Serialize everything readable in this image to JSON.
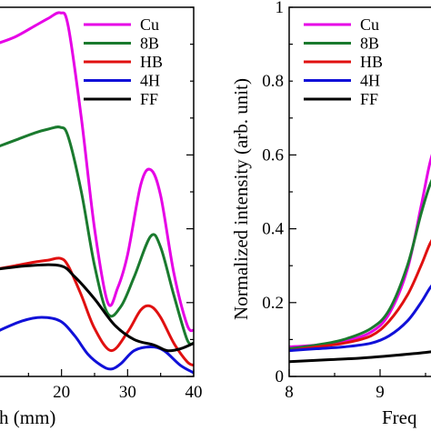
{
  "chart_data": [
    {
      "type": "line",
      "panel": "left",
      "title": "",
      "xlabel": "h (mm)",
      "ylabel": "",
      "xlim": [
        10,
        40
      ],
      "ylim": [
        0,
        1
      ],
      "x_ticks": [
        "20",
        "30",
        "40"
      ],
      "grid": false,
      "legend": "top-right",
      "series": [
        {
          "name": "Cu",
          "color": "#e600e6",
          "x": [
            10,
            13,
            16,
            18,
            19.8,
            21,
            23,
            25,
            27,
            28.5,
            30,
            32,
            33.5,
            35,
            37,
            39,
            40
          ],
          "y": [
            0.9,
            0.92,
            0.95,
            0.97,
            0.985,
            0.95,
            0.7,
            0.4,
            0.2,
            0.24,
            0.33,
            0.52,
            0.56,
            0.49,
            0.28,
            0.14,
            0.125
          ]
        },
        {
          "name": "8B",
          "color": "#1a7a2e",
          "x": [
            10,
            13,
            16,
            18,
            19.8,
            21,
            23,
            25,
            27,
            29,
            31,
            33.5,
            35,
            37,
            39,
            40
          ],
          "y": [
            0.62,
            0.64,
            0.66,
            0.67,
            0.675,
            0.65,
            0.5,
            0.3,
            0.17,
            0.19,
            0.27,
            0.38,
            0.35,
            0.22,
            0.1,
            0.09
          ]
        },
        {
          "name": "HB",
          "color": "#e01010",
          "x": [
            10,
            13,
            16,
            18,
            19.8,
            21,
            23,
            25,
            27.5,
            30,
            32,
            33.5,
            35,
            37,
            39,
            40
          ],
          "y": [
            0.29,
            0.3,
            0.31,
            0.315,
            0.32,
            0.3,
            0.22,
            0.13,
            0.07,
            0.12,
            0.18,
            0.19,
            0.16,
            0.09,
            0.04,
            0.03
          ]
        },
        {
          "name": "4H",
          "color": "#1010d8",
          "x": [
            10,
            14,
            17,
            19.8,
            22,
            24,
            26,
            27.5,
            29,
            31,
            33.5,
            35.5,
            38,
            40
          ],
          "y": [
            0.12,
            0.15,
            0.16,
            0.15,
            0.11,
            0.06,
            0.03,
            0.02,
            0.035,
            0.07,
            0.08,
            0.07,
            0.03,
            0.01
          ]
        },
        {
          "name": "FF",
          "color": "#000000",
          "x": [
            10,
            15,
            19.8,
            22,
            25,
            28,
            31,
            34,
            36,
            38,
            40
          ],
          "y": [
            0.29,
            0.3,
            0.3,
            0.27,
            0.21,
            0.14,
            0.1,
            0.085,
            0.07,
            0.075,
            0.09
          ]
        }
      ]
    },
    {
      "type": "line",
      "panel": "right",
      "title": "",
      "xlabel": "Freq",
      "ylabel": "Normalized intensity (arb. unit)",
      "xlim": [
        8,
        10
      ],
      "ylim": [
        0,
        1
      ],
      "x_ticks": [
        "8",
        "9"
      ],
      "y_ticks": [
        "0",
        "0.2",
        "0.4",
        "0.6",
        "0.8",
        "1"
      ],
      "grid": false,
      "legend": "top-left",
      "series": [
        {
          "name": "Cu",
          "color": "#e600e6",
          "x": [
            8,
            8.3,
            8.6,
            8.9,
            9.1,
            9.3,
            9.45,
            9.55,
            9.65
          ],
          "y": [
            0.08,
            0.085,
            0.095,
            0.12,
            0.17,
            0.29,
            0.46,
            0.58,
            0.66
          ]
        },
        {
          "name": "8B",
          "color": "#1a7a2e",
          "x": [
            8,
            8.3,
            8.6,
            8.9,
            9.1,
            9.3,
            9.45,
            9.55,
            9.65
          ],
          "y": [
            0.075,
            0.085,
            0.1,
            0.13,
            0.18,
            0.3,
            0.44,
            0.52,
            0.57
          ]
        },
        {
          "name": "HB",
          "color": "#e01010",
          "x": [
            8,
            8.3,
            8.6,
            8.9,
            9.1,
            9.3,
            9.45,
            9.55,
            9.65
          ],
          "y": [
            0.07,
            0.08,
            0.09,
            0.11,
            0.15,
            0.22,
            0.3,
            0.36,
            0.4
          ]
        },
        {
          "name": "4H",
          "color": "#1010d8",
          "x": [
            8,
            8.3,
            8.6,
            8.9,
            9.1,
            9.3,
            9.45,
            9.55,
            9.65
          ],
          "y": [
            0.07,
            0.075,
            0.08,
            0.09,
            0.11,
            0.15,
            0.2,
            0.24,
            0.27
          ]
        },
        {
          "name": "FF",
          "color": "#000000",
          "x": [
            8,
            8.4,
            8.8,
            9.2,
            9.5,
            9.65
          ],
          "y": [
            0.04,
            0.045,
            0.05,
            0.058,
            0.065,
            0.07
          ]
        }
      ]
    }
  ]
}
